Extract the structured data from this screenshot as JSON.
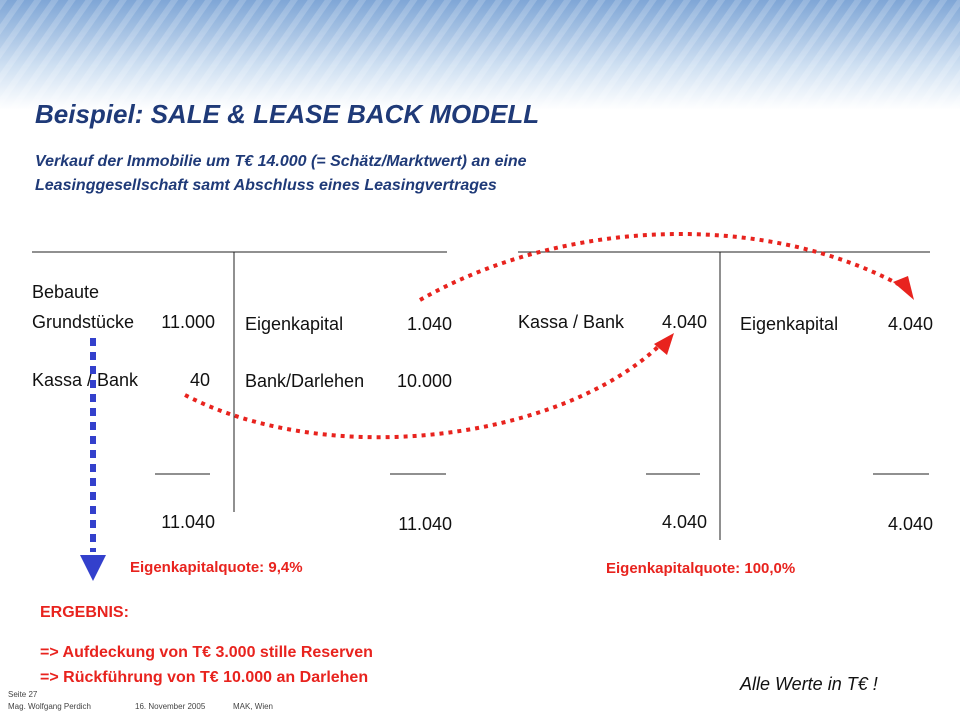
{
  "header": {
    "title": "Beispiel: SALE & LEASE BACK MODELL",
    "subtitle": [
      "Verkauf der Immobilie um T€ 14.000 (= Schätz/Marktwert) an eine",
      "Leasinggesellschaft samt Abschluss eines Leasingvertrages"
    ]
  },
  "left_account": {
    "assets": [
      {
        "label": [
          "Bebaute",
          "Grundstücke"
        ],
        "value": "11.000"
      },
      {
        "label": [
          "Kassa / Bank"
        ],
        "value": "40"
      }
    ],
    "assets_total": "11.040",
    "liabilities": [
      {
        "label": [
          "Eigenkapital"
        ],
        "value": "1.040"
      },
      {
        "label": [
          "Bank/Darlehen"
        ],
        "value": "10.000"
      }
    ],
    "liabilities_total": "11.040",
    "ratio": "Eigenkapitalquote: 9,4%"
  },
  "right_account": {
    "assets": [
      {
        "label": [
          "Kassa / Bank"
        ],
        "value": "4.040"
      }
    ],
    "assets_total": "4.040",
    "liabilities": [
      {
        "label": [
          "Eigenkapital"
        ],
        "value": "4.040"
      }
    ],
    "liabilities_total": "4.040",
    "ratio": "Eigenkapitalquote: 100,0%"
  },
  "result": {
    "title": "ERGEBNIS:",
    "lines": [
      "=> Aufdeckung von T€ 3.000 stille Reserven",
      "=> Rückführung von T€ 10.000 an Darlehen"
    ]
  },
  "note": "Alle Werte in T€ !",
  "footer": {
    "page": "Seite 27",
    "author": "Mag. Wolfgang Perdich",
    "date": "16. November 2005",
    "place": "MAK, Wien"
  }
}
